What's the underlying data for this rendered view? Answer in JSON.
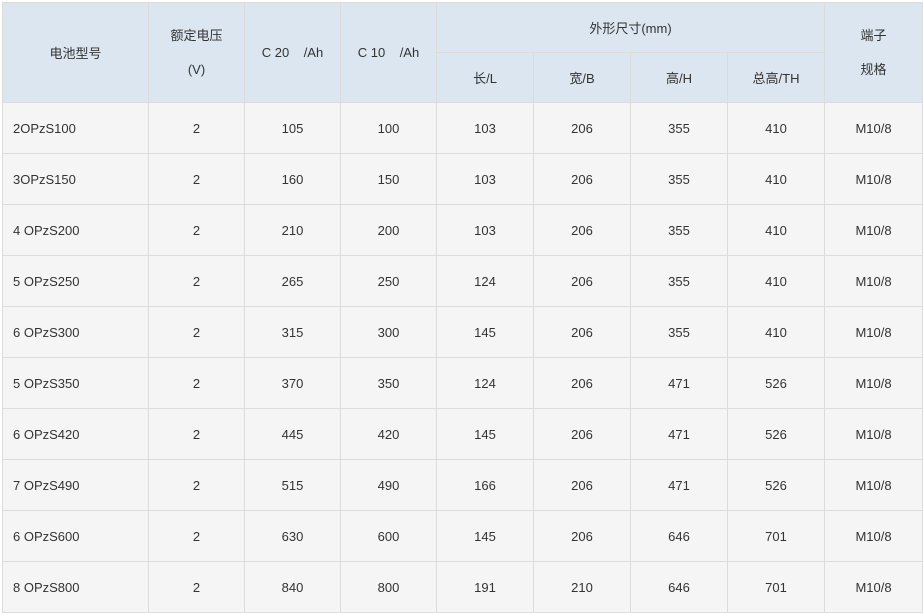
{
  "header": {
    "model": "电池型号",
    "voltage_line1": "额定电压",
    "voltage_line2": "(V)",
    "c20": "C 20    /Ah",
    "c10": "C 10    /Ah",
    "dimensions": "外形尺寸(mm)",
    "length": "长/L",
    "width": "宽/B",
    "height": "高/H",
    "total_height": "总高/TH",
    "terminal_line1": "端子",
    "terminal_line2": "规格"
  },
  "rows": [
    [
      "2OPzS100",
      "2",
      "105",
      "100",
      "103",
      "206",
      "355",
      "410",
      "M10/8"
    ],
    [
      "3OPzS150",
      "2",
      "160",
      "150",
      "103",
      "206",
      "355",
      "410",
      "M10/8"
    ],
    [
      "4 OPzS200",
      "2",
      "210",
      "200",
      "103",
      "206",
      "355",
      "410",
      "M10/8"
    ],
    [
      "5 OPzS250",
      "2",
      "265",
      "250",
      "124",
      "206",
      "355",
      "410",
      "M10/8"
    ],
    [
      "6 OPzS300",
      "2",
      "315",
      "300",
      "145",
      "206",
      "355",
      "410",
      "M10/8"
    ],
    [
      "5 OPzS350",
      "2",
      "370",
      "350",
      "124",
      "206",
      "471",
      "526",
      "M10/8"
    ],
    [
      "6 OPzS420",
      "2",
      "445",
      "420",
      "145",
      "206",
      "471",
      "526",
      "M10/8"
    ],
    [
      "7 OPzS490",
      "2",
      "515",
      "490",
      "166",
      "206",
      "471",
      "526",
      "M10/8"
    ],
    [
      "6 OPzS600",
      "2",
      "630",
      "600",
      "145",
      "206",
      "646",
      "701",
      "M10/8"
    ],
    [
      "8 OPzS800",
      "2",
      "840",
      "800",
      "191",
      "210",
      "646",
      "701",
      "M10/8"
    ]
  ]
}
